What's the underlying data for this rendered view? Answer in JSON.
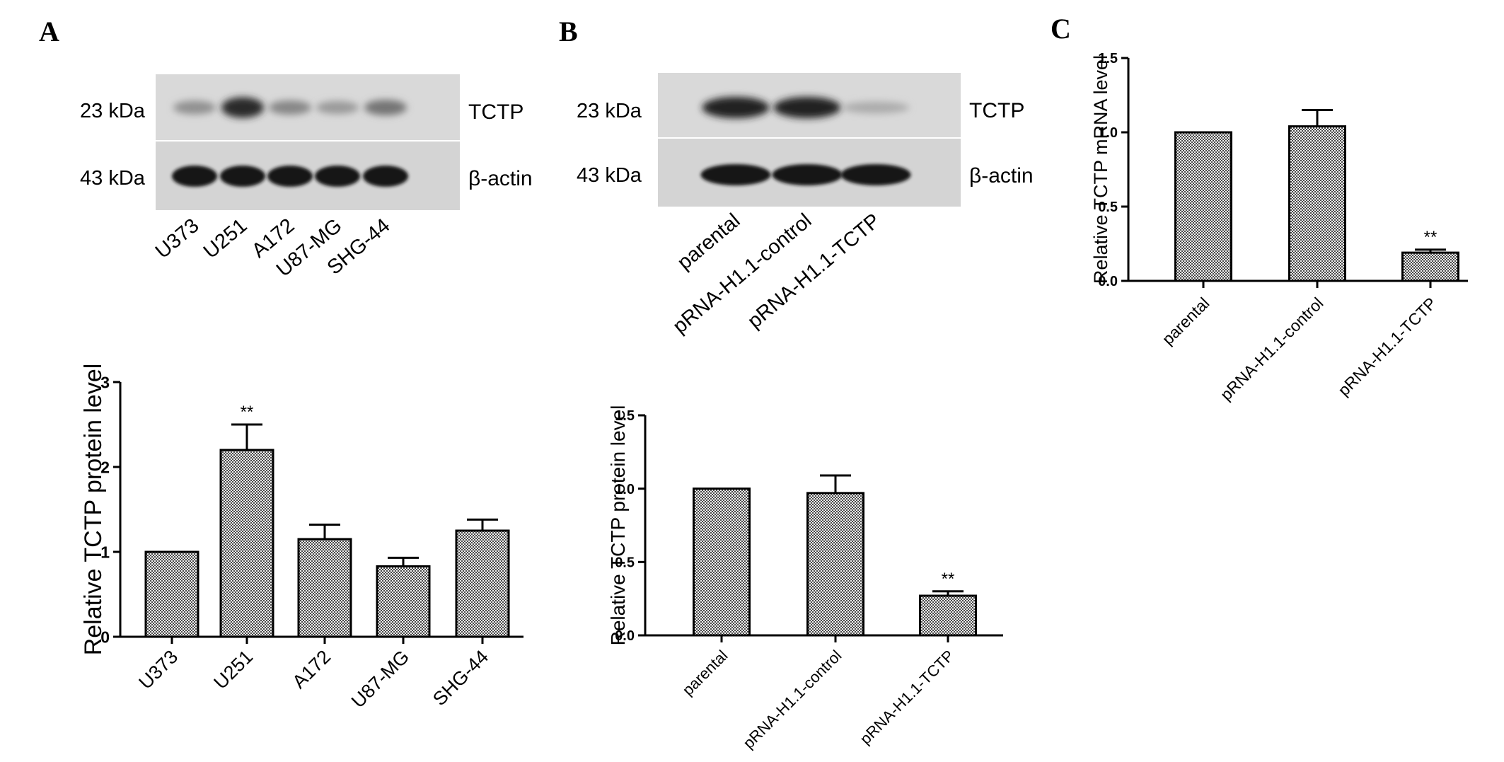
{
  "panel_labels": {
    "a": "A",
    "b": "B",
    "c": "C"
  },
  "blots": {
    "a": {
      "markers": [
        "23 kDa",
        "43 kDa"
      ],
      "bands": [
        "TCTP",
        "β-actin"
      ],
      "lanes": [
        "U373",
        "U251",
        "A172",
        "U87-MG",
        "SHG-44"
      ],
      "tctp_intensity": [
        0.3,
        0.85,
        0.35,
        0.25,
        0.45
      ]
    },
    "b": {
      "markers": [
        "23 kDa",
        "43 kDa"
      ],
      "bands": [
        "TCTP",
        "β-actin"
      ],
      "lanes": [
        "parental",
        "pRNA-H1.1-control",
        "pRNA-H1.1-TCTP"
      ],
      "tctp_intensity": [
        0.9,
        0.9,
        0.15
      ]
    }
  },
  "chart_data": [
    {
      "id": "A-bar",
      "type": "bar",
      "categories": [
        "U373",
        "U251",
        "A172",
        "U87-MG",
        "SHG-44"
      ],
      "values": [
        1.0,
        2.2,
        1.15,
        0.83,
        1.25
      ],
      "errors": [
        0,
        0.3,
        0.17,
        0.1,
        0.13
      ],
      "annotations": [
        "",
        "**",
        "",
        "",
        ""
      ],
      "ylabel": "Relative TCTP protein level",
      "ylim": [
        0,
        3
      ],
      "yticks": [
        0,
        1,
        2,
        3
      ],
      "ytick_labels": [
        "0",
        "1",
        "2",
        "3"
      ]
    },
    {
      "id": "B-bar",
      "type": "bar",
      "categories": [
        "parental",
        "pRNA-H1.1-control",
        "pRNA-H1.1-TCTP"
      ],
      "values": [
        1.0,
        0.97,
        0.27
      ],
      "errors": [
        0,
        0.12,
        0.03
      ],
      "annotations": [
        "",
        "",
        "**"
      ],
      "ylabel": "Relative TCTP protein level",
      "ylim": [
        0,
        1.5
      ],
      "yticks": [
        0,
        0.5,
        1.0,
        1.5
      ],
      "ytick_labels": [
        "0.0",
        "0.5",
        "1.0",
        "1.5"
      ]
    },
    {
      "id": "C-bar",
      "type": "bar",
      "categories": [
        "parental",
        "pRNA-H1.1-control",
        "pRNA-H1.1-TCTP"
      ],
      "values": [
        1.0,
        1.04,
        0.19
      ],
      "errors": [
        0,
        0.11,
        0.02
      ],
      "annotations": [
        "",
        "",
        "**"
      ],
      "ylabel": "Relative TCTP mRNA level",
      "ylim": [
        0,
        1.5
      ],
      "yticks": [
        0,
        0.5,
        1.0,
        1.5
      ],
      "ytick_labels": [
        "0.0",
        "0.5",
        "1.0",
        "1.5"
      ]
    }
  ]
}
